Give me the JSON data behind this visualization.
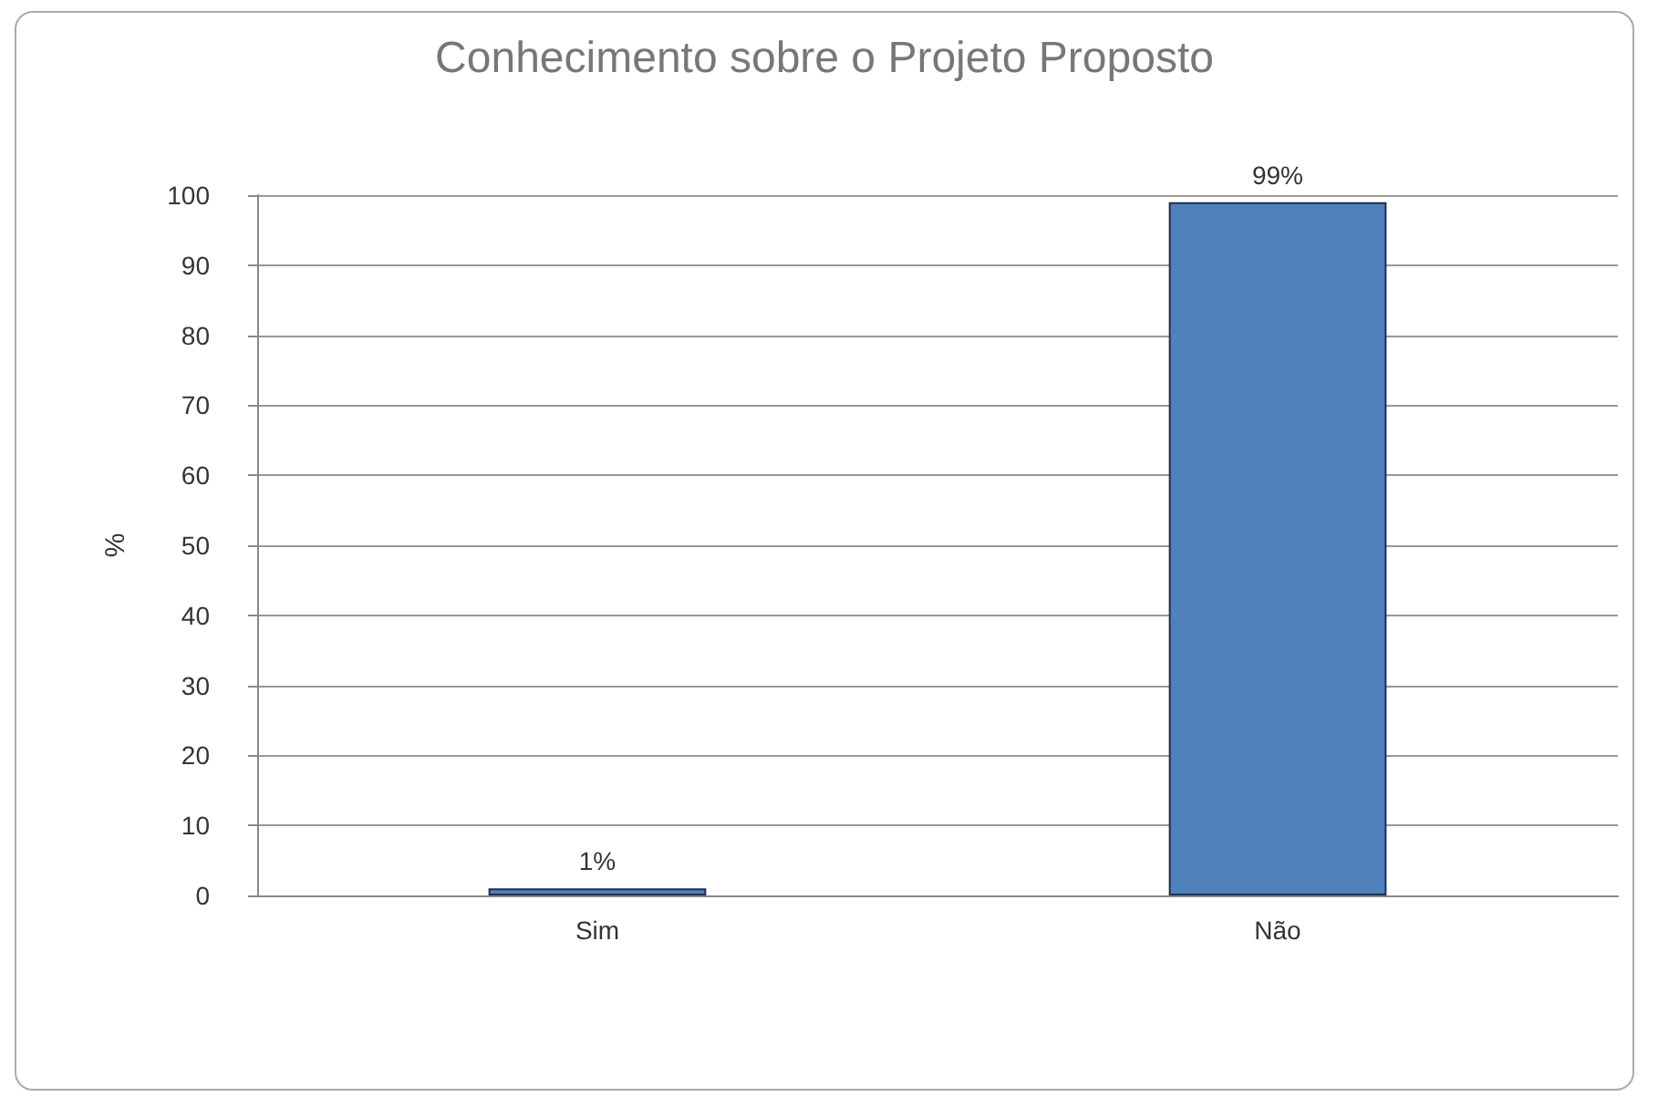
{
  "chart_data": {
    "type": "bar",
    "title": "Conhecimento sobre o Projeto Proposto",
    "ylabel": "%",
    "categories": [
      "Sim",
      "Não"
    ],
    "series": [
      {
        "color": "#4f81bd",
        "values": [
          1,
          99
        ],
        "value_labels": [
          "1%",
          "99%"
        ]
      }
    ],
    "ylim": [
      0,
      100
    ],
    "yticks": [
      0,
      10,
      20,
      30,
      40,
      50,
      60,
      70,
      80,
      90,
      100
    ],
    "grid": "y"
  }
}
